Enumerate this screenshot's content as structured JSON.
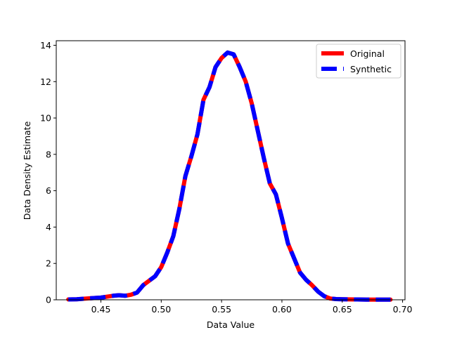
{
  "colors": {
    "original": "#ff0000",
    "synthetic": "#0000ff"
  },
  "chart_data": {
    "type": "line",
    "title": "",
    "xlabel": "Data Value",
    "ylabel": "Data Density Estimate",
    "xlim": [
      0.413,
      0.702
    ],
    "ylim": [
      0,
      14.25
    ],
    "xticks": [
      0.45,
      0.5,
      0.55,
      0.6,
      0.65,
      0.7
    ],
    "xtick_labels": [
      "0.45",
      "0.50",
      "0.55",
      "0.60",
      "0.65",
      "0.70"
    ],
    "yticks": [
      0,
      2,
      4,
      6,
      8,
      10,
      12,
      14
    ],
    "ytick_labels": [
      "0",
      "2",
      "4",
      "6",
      "8",
      "10",
      "12",
      "14"
    ],
    "grid": false,
    "legend_position": "top-right",
    "series": [
      {
        "name": "Original",
        "style": "solid",
        "x": [
          0.423,
          0.43,
          0.44,
          0.45,
          0.46,
          0.465,
          0.47,
          0.475,
          0.48,
          0.485,
          0.49,
          0.495,
          0.5,
          0.505,
          0.51,
          0.515,
          0.52,
          0.525,
          0.53,
          0.535,
          0.54,
          0.545,
          0.55,
          0.555,
          0.56,
          0.565,
          0.57,
          0.575,
          0.58,
          0.585,
          0.59,
          0.595,
          0.6,
          0.605,
          0.61,
          0.615,
          0.62,
          0.625,
          0.63,
          0.635,
          0.64,
          0.645,
          0.65,
          0.66,
          0.67,
          0.68,
          0.69
        ],
        "y": [
          0.02,
          0.03,
          0.08,
          0.12,
          0.22,
          0.25,
          0.22,
          0.28,
          0.4,
          0.8,
          1.05,
          1.3,
          1.8,
          2.6,
          3.5,
          5.0,
          6.8,
          7.9,
          9.1,
          11.0,
          11.7,
          12.8,
          13.3,
          13.6,
          13.5,
          12.8,
          12.0,
          10.8,
          9.3,
          7.8,
          6.4,
          5.8,
          4.5,
          3.1,
          2.3,
          1.5,
          1.1,
          0.8,
          0.45,
          0.2,
          0.07,
          0.04,
          0.03,
          0.02,
          0.01,
          0.01,
          0.01
        ]
      },
      {
        "name": "Synthetic",
        "style": "dashed",
        "x": [
          0.423,
          0.43,
          0.44,
          0.45,
          0.46,
          0.465,
          0.47,
          0.475,
          0.48,
          0.485,
          0.49,
          0.495,
          0.5,
          0.505,
          0.51,
          0.515,
          0.52,
          0.525,
          0.53,
          0.535,
          0.54,
          0.545,
          0.55,
          0.555,
          0.56,
          0.565,
          0.57,
          0.575,
          0.58,
          0.585,
          0.59,
          0.595,
          0.6,
          0.605,
          0.61,
          0.615,
          0.62,
          0.625,
          0.63,
          0.635,
          0.64,
          0.645,
          0.65,
          0.66,
          0.67,
          0.68,
          0.69
        ],
        "y": [
          0.02,
          0.03,
          0.08,
          0.12,
          0.22,
          0.25,
          0.22,
          0.28,
          0.4,
          0.8,
          1.05,
          1.3,
          1.8,
          2.6,
          3.5,
          5.0,
          6.8,
          7.9,
          9.1,
          11.0,
          11.7,
          12.8,
          13.3,
          13.6,
          13.5,
          12.8,
          12.0,
          10.8,
          9.3,
          7.8,
          6.4,
          5.8,
          4.5,
          3.1,
          2.3,
          1.5,
          1.1,
          0.8,
          0.45,
          0.2,
          0.07,
          0.04,
          0.03,
          0.02,
          0.01,
          0.01,
          0.01
        ]
      }
    ]
  }
}
